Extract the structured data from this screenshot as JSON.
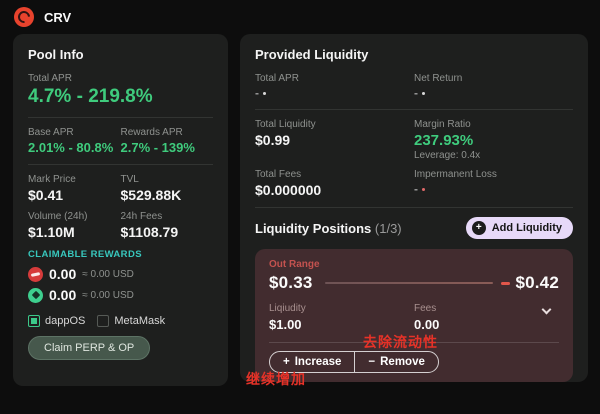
{
  "colors": {
    "accent_green": "#3fcb7d",
    "teal": "#38c7bd",
    "annotation_red": "#e63228",
    "card_red_text": "#c4524f",
    "lavender_button": "#e7d9f8",
    "op_icon": "#d63b3b",
    "perp_icon": "#3ecf8e"
  },
  "header": {
    "token_name": "CRV"
  },
  "pool": {
    "title": "Pool Info",
    "total_apr": {
      "label": "Total APR",
      "value": "4.7% - 219.8%"
    },
    "base_apr": {
      "label": "Base APR",
      "value": "2.01% - 80.8%"
    },
    "rewards_apr": {
      "label": "Rewards APR",
      "value": "2.7% - 139%"
    },
    "mark_price": {
      "label": "Mark Price",
      "value": "$0.41"
    },
    "tvl": {
      "label": "TVL",
      "value": "$529.88K"
    },
    "volume_24h": {
      "label": "Volume (24h)",
      "value": "$1.10M"
    },
    "fees_24h": {
      "label": "24h Fees",
      "value": "$1108.79"
    },
    "claimable_label": "CLAIMABLE REWARDS",
    "rewards": [
      {
        "token": "OP",
        "amount": "0.00",
        "usd": "≈ 0.00 USD",
        "icon_style": "background:#d63b3b"
      },
      {
        "token": "PERP",
        "amount": "0.00",
        "usd": "≈ 0.00 USD",
        "icon_style": "background:#3ecf8e"
      }
    ],
    "wallets": [
      {
        "label": "dappOS",
        "checked": true
      },
      {
        "label": "MetaMask",
        "checked": false
      }
    ],
    "claim_button_label": "Claim PERP & OP"
  },
  "provided": {
    "title": "Provided Liquidity",
    "total_apr": {
      "label": "Total APR",
      "value": "-",
      "dot_style": "background:#d8d8d8"
    },
    "net_return": {
      "label": "Net Return",
      "value": "-",
      "dot_style": "background:#d8d8d8"
    },
    "total_liquidity": {
      "label": "Total Liquidity",
      "value": "$0.99"
    },
    "margin_ratio": {
      "label": "Margin Ratio",
      "value": "237.93%",
      "sub": "Leverage: 0.4x"
    },
    "total_fees": {
      "label": "Total Fees",
      "value": "$0.000000"
    },
    "impermanent_loss": {
      "label": "Impermanent Loss",
      "value": "-",
      "dot_style": "background:#e06a6a"
    }
  },
  "positions": {
    "title": "Liquidity Positions",
    "count": "(1/3)",
    "add_button_label": "Add Liquidity",
    "add_button_icon": "+",
    "card": {
      "status": "Out Range",
      "price_min": "$0.33",
      "price_max": "$0.42",
      "liquidity": {
        "label": "Liqiudity",
        "value": "$1.00"
      },
      "fees": {
        "label": "Fees",
        "value": "0.00"
      },
      "increase": {
        "icon": "+",
        "label": "Increase"
      },
      "remove": {
        "icon": "−",
        "label": "Remove"
      }
    }
  },
  "annotations": {
    "remove_liquidity": "去除流动性",
    "keep_adding": "继续增加"
  }
}
